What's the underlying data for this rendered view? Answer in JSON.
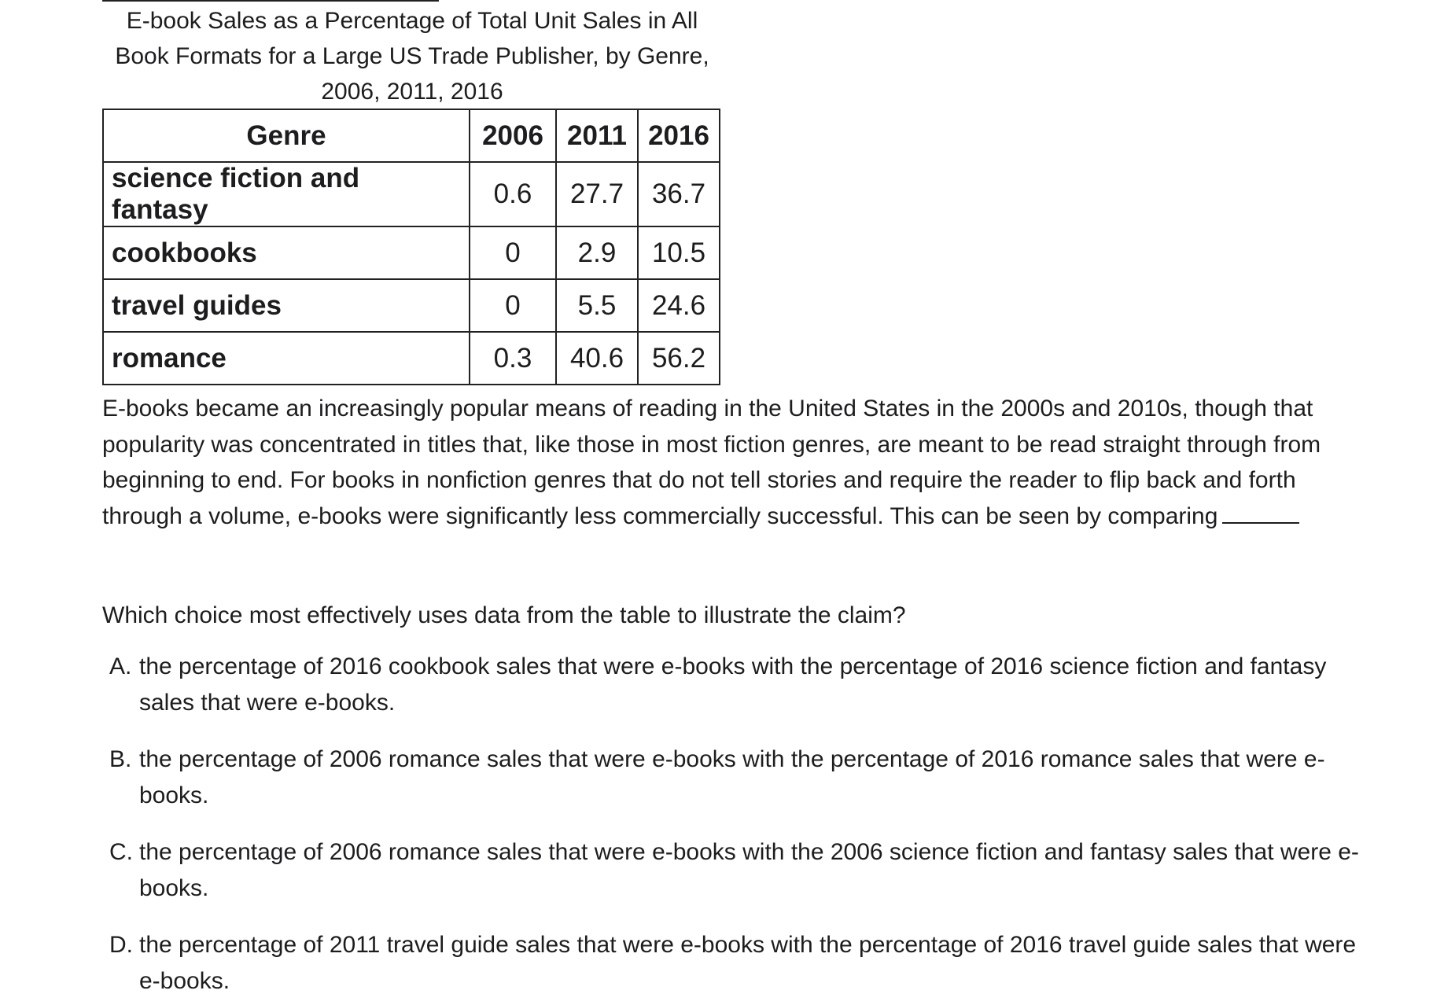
{
  "caption": "E-book Sales as a Percentage of Total Unit Sales in All Book Formats for a Large US Trade Publisher, by Genre, 2006, 2011, 2016",
  "table": {
    "headers": [
      "Genre",
      "2006",
      "2011",
      "2016"
    ],
    "rows": [
      [
        "science fiction and fantasy",
        "0.6",
        "27.7",
        "36.7"
      ],
      [
        "cookbooks",
        "0",
        "2.9",
        "10.5"
      ],
      [
        "travel guides",
        "0",
        "5.5",
        "24.6"
      ],
      [
        "romance",
        "0.3",
        "40.6",
        "56.2"
      ]
    ]
  },
  "passage": "E-books became an increasingly popular means of reading in the United States in the 2000s and 2010s, though that popularity was concentrated in titles that, like those in most fiction genres, are meant to be read straight through from beginning to end. For books in nonfiction genres that do not tell stories and require the reader to flip back and forth through a volume, e-books were significantly less commercially successful. This can be seen by comparing",
  "question": "Which choice most effectively uses data from the table to illustrate the claim?",
  "choices": [
    {
      "letter": "A.",
      "text": "the percentage of 2016 cookbook sales that were e-books with the percentage of 2016 science fiction and fantasy sales that were e-books."
    },
    {
      "letter": "B.",
      "text": "the percentage of 2006 romance sales that were e-books with the percentage of 2016 romance sales that were e-books."
    },
    {
      "letter": "C.",
      "text": "the percentage of 2006 romance sales that were e-books with the 2006 science fiction and fantasy sales that were e-books."
    },
    {
      "letter": "D.",
      "text": "the percentage of 2011 travel guide sales that were e-books with the percentage of 2016 travel guide sales that were e-books."
    }
  ]
}
